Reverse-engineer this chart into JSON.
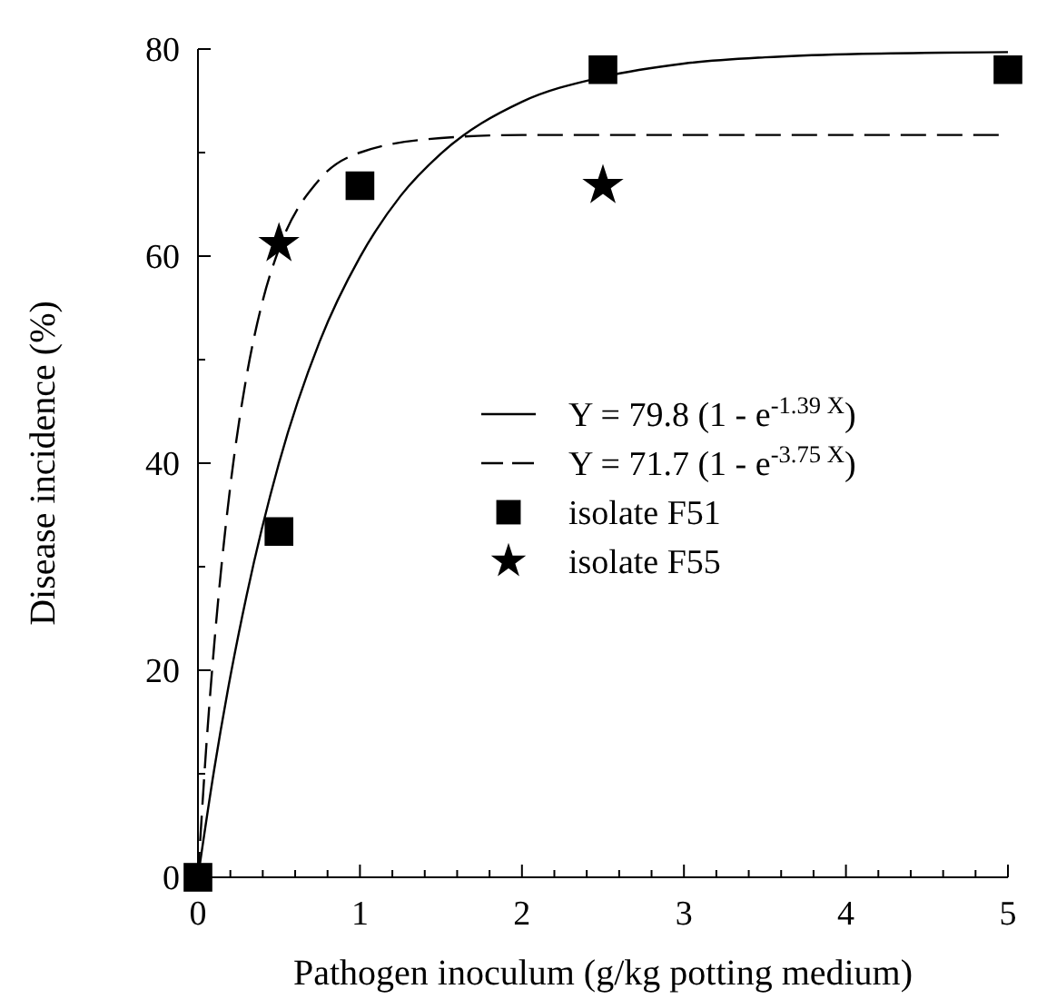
{
  "chart_data": {
    "type": "scatter",
    "xlabel": "Pathogen inoculum (g/kg potting medium)",
    "ylabel": "Disease incidence (%)",
    "xlim": [
      0,
      5
    ],
    "ylim": [
      0,
      80
    ],
    "xticks": [
      0,
      {
        "value": 0.2,
        "label": null
      },
      {
        "value": 0.4,
        "label": null
      },
      {
        "value": 0.6,
        "label": null
      },
      {
        "value": 0.8,
        "label": null
      },
      1,
      {
        "value": 1.2,
        "label": null
      },
      {
        "value": 1.4,
        "label": null
      },
      {
        "value": 1.6,
        "label": null
      },
      {
        "value": 1.8,
        "label": null
      },
      2,
      {
        "value": 2.2,
        "label": null
      },
      {
        "value": 2.4,
        "label": null
      },
      {
        "value": 2.6,
        "label": null
      },
      {
        "value": 2.8,
        "label": null
      },
      3,
      {
        "value": 3.2,
        "label": null
      },
      {
        "value": 3.4,
        "label": null
      },
      {
        "value": 3.6,
        "label": null
      },
      {
        "value": 3.8,
        "label": null
      },
      4,
      {
        "value": 4.2,
        "label": null
      },
      {
        "value": 4.4,
        "label": null
      },
      {
        "value": 4.6,
        "label": null
      },
      {
        "value": 4.8,
        "label": null
      },
      5
    ],
    "yticks": [
      0,
      {
        "value": 10,
        "label": null
      },
      20,
      {
        "value": 30,
        "label": null
      },
      40,
      {
        "value": 50,
        "label": null
      },
      60,
      {
        "value": 70,
        "label": null
      },
      80
    ],
    "legend": "right",
    "grid": false,
    "series": [
      {
        "name": "Y = 79.8 (1 - e$^{-1.39 X}$)",
        "type": "line",
        "line_style": "solid",
        "color": "#000000",
        "x": [
          0,
          0.1,
          0.2,
          0.3,
          0.5,
          0.75,
          1,
          1.25,
          1.5,
          2,
          2.5,
          3,
          3.5,
          4,
          5
        ],
        "values": [
          0,
          10.4,
          19.4,
          27.2,
          40.0,
          51.7,
          59.9,
          65.8,
          69.9,
          74.9,
          77.3,
          78.6,
          79.2,
          79.5,
          79.7
        ]
      },
      {
        "name": "Y = 71.7 (1 - e$^{-3.75 X}$)",
        "type": "line",
        "line_style": "dashed",
        "color": "#000000",
        "x": [
          0,
          0.05,
          0.1,
          0.2,
          0.3,
          0.4,
          0.5,
          0.75,
          1,
          1.5,
          2,
          3,
          5
        ],
        "values": [
          0,
          12.3,
          22.4,
          37.8,
          48.4,
          55.7,
          60.7,
          67.4,
          70.0,
          71.4,
          71.7,
          71.7,
          71.7
        ]
      },
      {
        "name": "isolate F51",
        "marker": "square",
        "color": "#000000",
        "x": [
          0,
          0.5,
          1,
          2.5,
          5
        ],
        "values": [
          0,
          33.4,
          66.8,
          78.0,
          78.0
        ]
      },
      {
        "name": "isolate F55",
        "marker": "star",
        "color": "#000000",
        "x": [
          0.5,
          2.5
        ],
        "values": [
          61.2,
          66.8
        ]
      }
    ]
  }
}
